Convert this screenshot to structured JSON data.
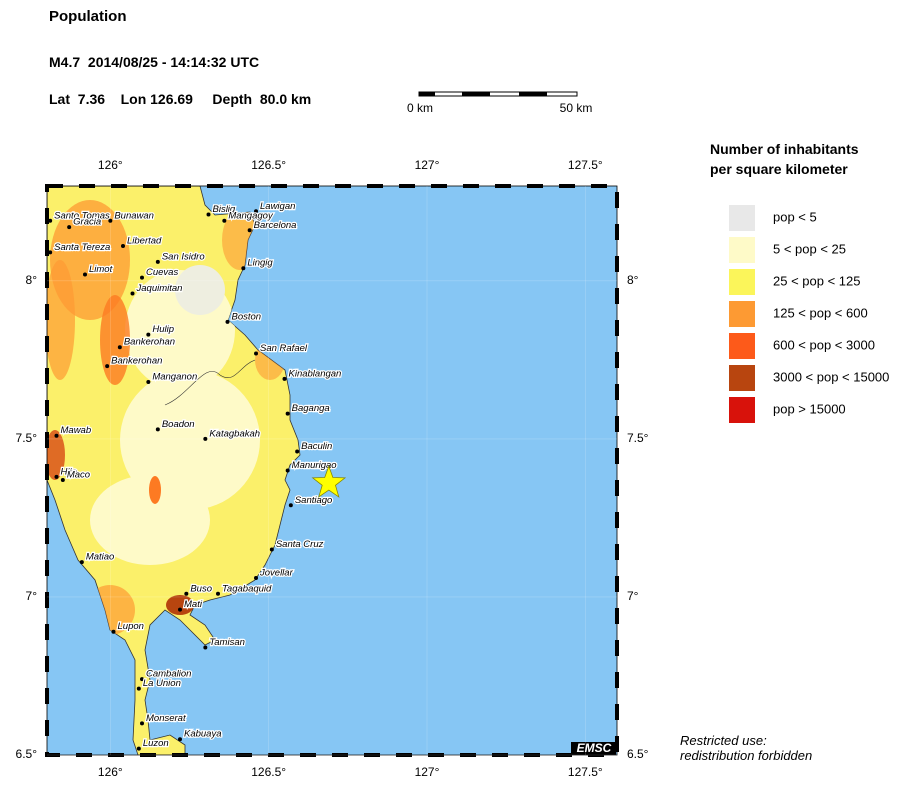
{
  "header": {
    "title": "Population",
    "event_line": "M4.7  2014/08/25 - 14:14:32 UTC"
  },
  "event": {
    "lat_label": "Lat",
    "lat": 7.36,
    "lon_label": "Lon",
    "lon": 126.69,
    "depth_label": "Depth",
    "depth": "80.0 km"
  },
  "scale_bar": [
    "0 km",
    "50 km"
  ],
  "map": {
    "xlim": [
      125.8,
      127.6
    ],
    "ylim": [
      6.5,
      8.3
    ],
    "xticks": [
      {
        "value": 126,
        "label": "126°"
      },
      {
        "value": 126.5,
        "label": "126.5°"
      },
      {
        "value": 127,
        "label": "127°"
      },
      {
        "value": 127.5,
        "label": "127.5°"
      }
    ],
    "yticks": [
      {
        "value": 6.5,
        "label": "6.5°"
      },
      {
        "value": 7,
        "label": "7°"
      },
      {
        "value": 7.5,
        "label": "7.5°"
      },
      {
        "value": 8,
        "label": "8°"
      }
    ],
    "towns": [
      {
        "name": "Santo Tomas",
        "lon": 125.81,
        "lat": 8.19
      },
      {
        "name": "Gracia",
        "lon": 125.87,
        "lat": 8.17
      },
      {
        "name": "Bunawan",
        "lon": 126.0,
        "lat": 8.19
      },
      {
        "name": "Santa Tereza",
        "lon": 125.81,
        "lat": 8.09
      },
      {
        "name": "Libertad",
        "lon": 126.04,
        "lat": 8.11
      },
      {
        "name": "Limot",
        "lon": 125.92,
        "lat": 8.02
      },
      {
        "name": "San Isidro",
        "lon": 126.15,
        "lat": 8.06
      },
      {
        "name": "Cuevas",
        "lon": 126.1,
        "lat": 8.01
      },
      {
        "name": "Jaquimitan",
        "lon": 126.07,
        "lat": 7.96
      },
      {
        "name": "Bislig",
        "lon": 126.31,
        "lat": 8.21
      },
      {
        "name": "Lawigan",
        "lon": 126.46,
        "lat": 8.22
      },
      {
        "name": "Mangagoy",
        "lon": 126.36,
        "lat": 8.19
      },
      {
        "name": "Barcelona",
        "lon": 126.44,
        "lat": 8.16
      },
      {
        "name": "Lingig",
        "lon": 126.42,
        "lat": 8.04
      },
      {
        "name": "Boston",
        "lon": 126.37,
        "lat": 7.87
      },
      {
        "name": "San Rafael",
        "lon": 126.46,
        "lat": 7.77
      },
      {
        "name": "Hulip",
        "lon": 126.12,
        "lat": 7.83
      },
      {
        "name": "Bankerohan",
        "lon": 126.03,
        "lat": 7.79
      },
      {
        "name": "Bankerohan",
        "lon": 125.99,
        "lat": 7.73
      },
      {
        "name": "Manganon",
        "lon": 126.12,
        "lat": 7.68
      },
      {
        "name": "Kinablangan",
        "lon": 126.55,
        "lat": 7.69
      },
      {
        "name": "Baganga",
        "lon": 126.56,
        "lat": 7.58
      },
      {
        "name": "Boadon",
        "lon": 126.15,
        "lat": 7.53
      },
      {
        "name": "Katagbakah",
        "lon": 126.3,
        "lat": 7.5
      },
      {
        "name": "Mawab",
        "lon": 125.83,
        "lat": 7.51
      },
      {
        "name": "Baculin",
        "lon": 126.59,
        "lat": 7.46
      },
      {
        "name": "Manurigao",
        "lon": 126.56,
        "lat": 7.4
      },
      {
        "name": "Hijo",
        "lon": 125.83,
        "lat": 7.38
      },
      {
        "name": "Maco",
        "lon": 125.85,
        "lat": 7.37
      },
      {
        "name": "Santiago",
        "lon": 126.57,
        "lat": 7.29
      },
      {
        "name": "Matiao",
        "lon": 125.91,
        "lat": 7.11
      },
      {
        "name": "Santa Cruz",
        "lon": 126.51,
        "lat": 7.15
      },
      {
        "name": "Jovellar",
        "lon": 126.46,
        "lat": 7.06
      },
      {
        "name": "Buso",
        "lon": 126.24,
        "lat": 7.01
      },
      {
        "name": "Tagabaquid",
        "lon": 126.34,
        "lat": 7.01
      },
      {
        "name": "Mati",
        "lon": 126.22,
        "lat": 6.96
      },
      {
        "name": "Lupon",
        "lon": 126.01,
        "lat": 6.89
      },
      {
        "name": "Tamisan",
        "lon": 126.3,
        "lat": 6.84
      },
      {
        "name": "Cambalion",
        "lon": 126.1,
        "lat": 6.74
      },
      {
        "name": "La Union",
        "lon": 126.09,
        "lat": 6.71
      },
      {
        "name": "Monserat",
        "lon": 126.1,
        "lat": 6.6
      },
      {
        "name": "Kabuaya",
        "lon": 126.22,
        "lat": 6.55
      },
      {
        "name": "Luzon",
        "lon": 126.09,
        "lat": 6.52
      }
    ]
  },
  "legend": {
    "title": [
      "Number of inhabitants",
      "per square kilometer"
    ],
    "items": [
      {
        "label": "pop < 5",
        "color": "#e8e8e8"
      },
      {
        "label": "5 < pop < 25",
        "color": "#fefac8"
      },
      {
        "label": "25 < pop < 125",
        "color": "#fbf55a"
      },
      {
        "label": "125 < pop < 600",
        "color": "#fd9a33"
      },
      {
        "label": "600 < pop < 3000",
        "color": "#fd5a1a"
      },
      {
        "label": "3000 < pop < 15000",
        "color": "#b8450f"
      },
      {
        "label": "pop > 15000",
        "color": "#d8120b"
      }
    ]
  },
  "notice": [
    "Restricted use:",
    "redistribution forbidden"
  ],
  "credit": "EMSC"
}
